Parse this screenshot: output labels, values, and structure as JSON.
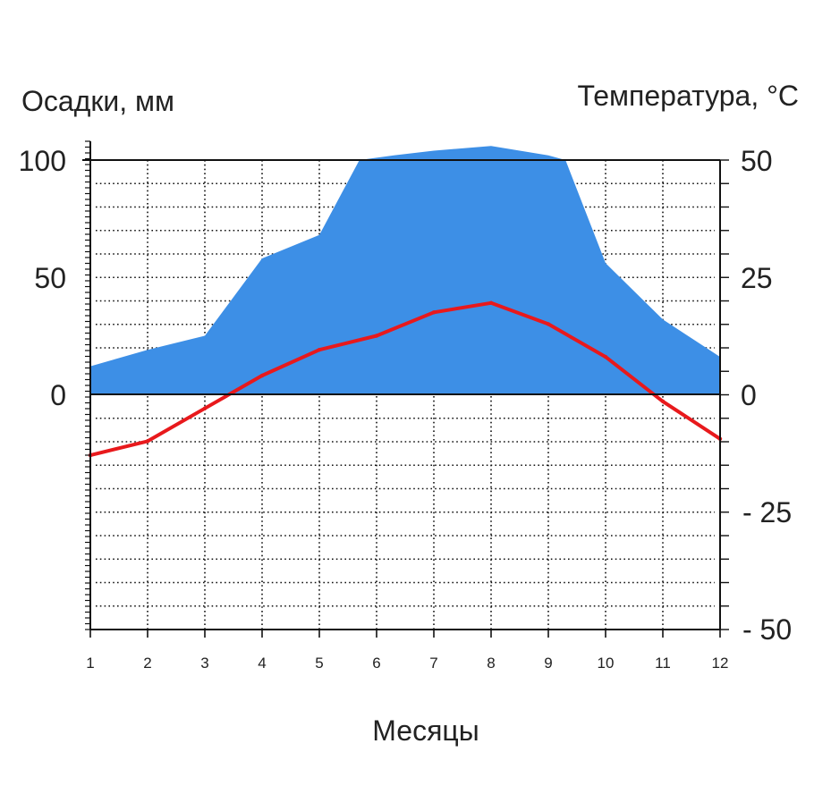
{
  "chart_data": {
    "type": "line",
    "xlabel": "Месяцы",
    "x": [
      1,
      2,
      3,
      4,
      5,
      6,
      7,
      8,
      9,
      10,
      11,
      12
    ],
    "xlim": [
      1,
      12
    ],
    "left_axis": {
      "label": "Осадки, мм",
      "ylim": [
        -100,
        100
      ],
      "ticks": [
        "100",
        "50",
        "0"
      ]
    },
    "right_axis": {
      "label": "Температура, °C",
      "ylim": [
        -50,
        50
      ],
      "ticks": [
        "50",
        "25",
        "0",
        "- 25",
        "- 50"
      ]
    },
    "series": [
      {
        "kind": "area",
        "axis": "left",
        "color": "#3d8fe6",
        "x": [
          1,
          2,
          3,
          4,
          5,
          5.7,
          6.3,
          7,
          8,
          9,
          9.3,
          10,
          11,
          12
        ],
        "values": [
          12,
          19,
          25,
          58,
          68,
          100,
          102,
          104,
          106,
          102,
          100,
          56,
          32,
          16
        ]
      },
      {
        "kind": "line",
        "axis": "right",
        "color": "#e8191c",
        "values": [
          -13,
          -10,
          -3,
          4,
          9.5,
          12.5,
          17.5,
          19.5,
          15,
          8,
          -1.5,
          -9.5
        ]
      }
    ],
    "grid": true,
    "grid_style": "dotted",
    "legend": "none"
  }
}
